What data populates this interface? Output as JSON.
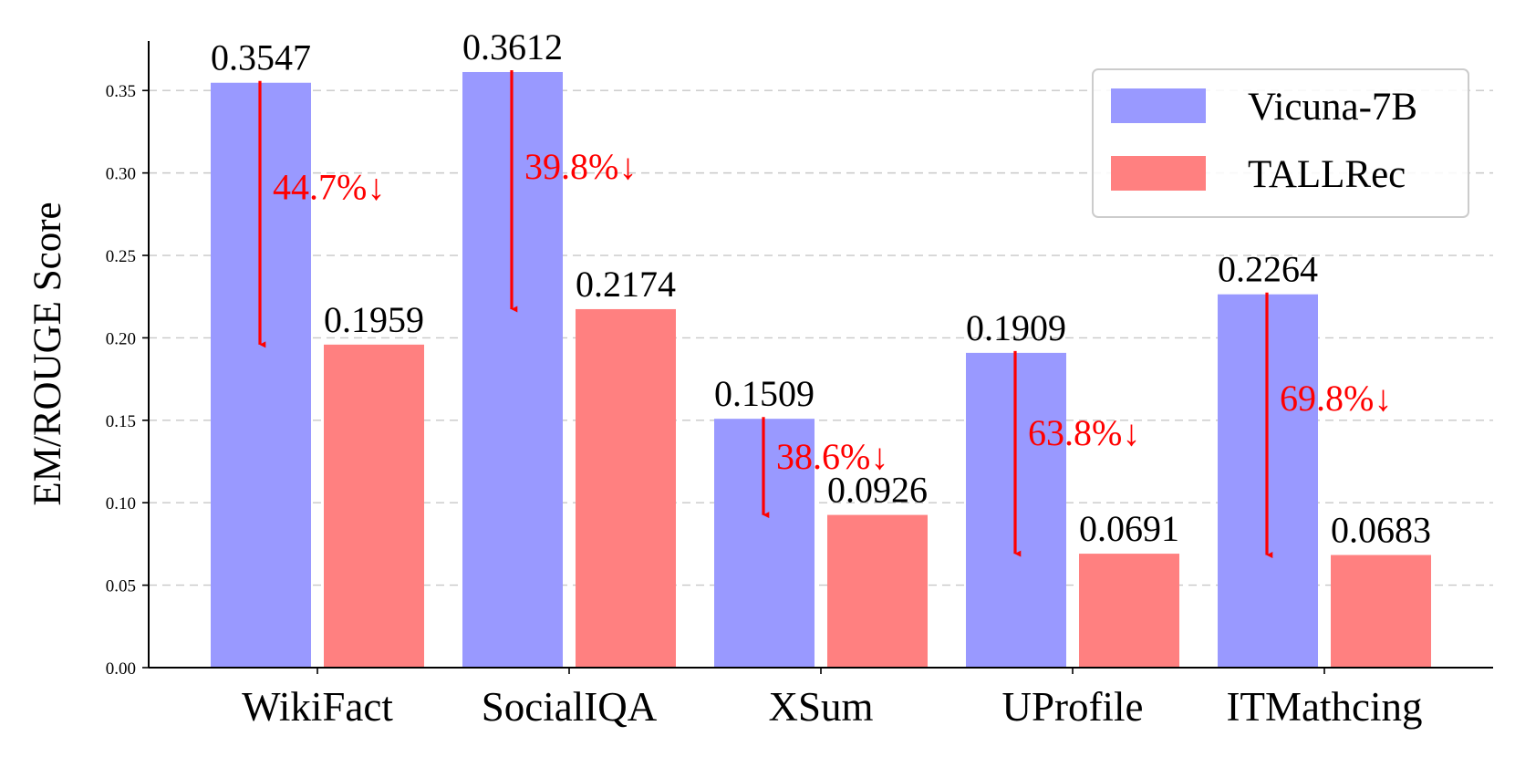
{
  "chart_data": {
    "type": "bar",
    "categories": [
      "WikiFact",
      "SocialIQA",
      "XSum",
      "UProfile",
      "ITMathcing"
    ],
    "series": [
      {
        "name": "Vicuna-7B",
        "values": [
          0.3547,
          0.3612,
          0.1509,
          0.1909,
          0.2264
        ],
        "color": "#9999ff"
      },
      {
        "name": "TALLRec",
        "values": [
          0.1959,
          0.2174,
          0.0926,
          0.0691,
          0.0683
        ],
        "color": "#ff8080"
      }
    ],
    "value_labels": [
      [
        "0.3547",
        "0.3612",
        "0.1509",
        "0.1909",
        "0.2264"
      ],
      [
        "0.1959",
        "0.2174",
        "0.0926",
        "0.0691",
        "0.0683"
      ]
    ],
    "drop_annotations": [
      {
        "text": "44.7%↓",
        "from": 0.3547,
        "to": 0.1959
      },
      {
        "text": "39.8%↓",
        "from": 0.3612,
        "to": 0.2174
      },
      {
        "text": "38.6%↓",
        "from": 0.1509,
        "to": 0.0926
      },
      {
        "text": "63.8%↓",
        "from": 0.1909,
        "to": 0.0691
      },
      {
        "text": "69.8%↓",
        "from": 0.2264,
        "to": 0.0683
      }
    ],
    "annotation_color": "#ff0000",
    "ylabel": "EM/ROUGE Score",
    "xlabel": "",
    "ylim": [
      0,
      0.38
    ],
    "yticks": [
      0,
      0.05,
      0.1,
      0.15,
      0.2,
      0.25,
      0.3,
      0.35
    ],
    "ytick_labels": [
      "0.00",
      "0.05",
      "0.10",
      "0.15",
      "0.20",
      "0.25",
      "0.30",
      "0.35"
    ],
    "grid": true,
    "legend_position": "top-right"
  }
}
